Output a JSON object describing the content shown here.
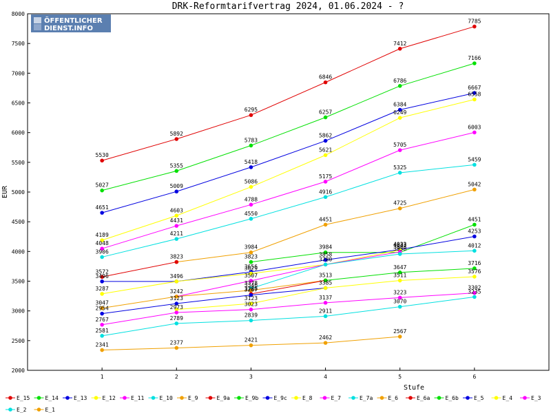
{
  "chart_data": {
    "type": "line",
    "title": "DRK-Reformtarifvertrag 2024, 01.06.2024 - ?",
    "xlabel": "Stufe",
    "ylabel": "EUR",
    "x": [
      1,
      2,
      3,
      4,
      5,
      6
    ],
    "xlim": [
      0,
      7
    ],
    "ylim": [
      2000,
      8000
    ],
    "y_ticks": [
      2000,
      2500,
      3000,
      3500,
      4000,
      4500,
      5000,
      5500,
      6000,
      6500,
      7000,
      7500,
      8000
    ],
    "grid": false,
    "legend_position": "bottom",
    "series": [
      {
        "name": "E_15",
        "color": "#e00000",
        "values": [
          5530,
          5892,
          6295,
          6846,
          7412,
          7785
        ]
      },
      {
        "name": "E_14",
        "color": "#00e000",
        "values": [
          5027,
          5355,
          5783,
          6257,
          6786,
          7166
        ]
      },
      {
        "name": "E_13",
        "color": "#0000e0",
        "values": [
          4651,
          5009,
          5418,
          5862,
          6384,
          6667
        ]
      },
      {
        "name": "E_12",
        "color": "#ffff00",
        "values": [
          4189,
          4603,
          5086,
          5621,
          6249,
          6558
        ]
      },
      {
        "name": "E_11",
        "color": "#ff00ff",
        "values": [
          4048,
          4431,
          4788,
          5175,
          5705,
          6003
        ]
      },
      {
        "name": "E_10",
        "color": "#00e0e0",
        "values": [
          3906,
          4211,
          4550,
          4916,
          5325,
          5459
        ]
      },
      {
        "name": "E_9",
        "color": "#f0a000",
        "values": [
          null,
          3823,
          3984,
          4451,
          4725,
          5042
        ]
      },
      {
        "name": "E_9a",
        "color": "#e00000",
        "values": [
          3572,
          3823,
          null,
          null,
          null,
          null
        ]
      },
      {
        "name": "E_9b",
        "color": "#00e000",
        "values": [
          null,
          null,
          3823,
          3984,
          3984,
          4451
        ]
      },
      {
        "name": "E_9c",
        "color": "#0000e0",
        "values": [
          3496,
          3496,
          3656,
          3858,
          4033,
          4253
        ]
      },
      {
        "name": "E_8",
        "color": "#ffff00",
        "values": [
          3287,
          3496,
          3629,
          3780,
          4023,
          null
        ]
      },
      {
        "name": "E_7",
        "color": "#ff00ff",
        "values": [
          null,
          3242,
          3507,
          3780,
          3993,
          null
        ]
      },
      {
        "name": "E_7a",
        "color": "#00e0e0",
        "values": [
          null,
          null,
          3378,
          3780,
          3958,
          4012
        ]
      },
      {
        "name": "E_6",
        "color": "#f0a000",
        "values": [
          3047,
          3242,
          3346,
          3513,
          null,
          null
        ]
      },
      {
        "name": "E_6a",
        "color": "#e00000",
        "values": [
          null,
          null,
          3286,
          3513,
          null,
          null
        ]
      },
      {
        "name": "E_6b",
        "color": "#00e000",
        "values": [
          null,
          null,
          null,
          3513,
          3647,
          3716
        ]
      },
      {
        "name": "E_5",
        "color": "#0000e0",
        "values": [
          2954,
          3123,
          3267,
          3385,
          null,
          null
        ]
      },
      {
        "name": "E_4",
        "color": "#ffff00",
        "values": [
          null,
          3023,
          3123,
          3385,
          3511,
          3576
        ]
      },
      {
        "name": "E_3",
        "color": "#ff00ff",
        "values": [
          2767,
          2973,
          3023,
          3137,
          3223,
          3302
        ]
      },
      {
        "name": "E_2",
        "color": "#00e0e0",
        "values": [
          2581,
          2789,
          2839,
          2911,
          3070,
          3235
        ]
      },
      {
        "name": "E_1",
        "color": "#f0a000",
        "values": [
          2341,
          2377,
          2421,
          2462,
          2567,
          null
        ]
      }
    ],
    "data_labels": [
      {
        "x": 1,
        "y": 5530,
        "text": "5530"
      },
      {
        "x": 2,
        "y": 5892,
        "text": "5892"
      },
      {
        "x": 3,
        "y": 6295,
        "text": "6295"
      },
      {
        "x": 4,
        "y": 6846,
        "text": "6846"
      },
      {
        "x": 5,
        "y": 7412,
        "text": "7412"
      },
      {
        "x": 6,
        "y": 7785,
        "text": "7785"
      },
      {
        "x": 1,
        "y": 5027,
        "text": "5027"
      },
      {
        "x": 2,
        "y": 5355,
        "text": "5355"
      },
      {
        "x": 3,
        "y": 5783,
        "text": "5783"
      },
      {
        "x": 4,
        "y": 6257,
        "text": "6257"
      },
      {
        "x": 5,
        "y": 6786,
        "text": "6786"
      },
      {
        "x": 6,
        "y": 7166,
        "text": "7166"
      },
      {
        "x": 1,
        "y": 4651,
        "text": "4651"
      },
      {
        "x": 2,
        "y": 5009,
        "text": "5009"
      },
      {
        "x": 3,
        "y": 5418,
        "text": "5418"
      },
      {
        "x": 4,
        "y": 5862,
        "text": "5862"
      },
      {
        "x": 5,
        "y": 6384,
        "text": "6384"
      },
      {
        "x": 6,
        "y": 6667,
        "text": "6667"
      },
      {
        "x": 1,
        "y": 4189,
        "text": "4189"
      },
      {
        "x": 2,
        "y": 4603,
        "text": "4603"
      },
      {
        "x": 3,
        "y": 5086,
        "text": "5086"
      },
      {
        "x": 4,
        "y": 5621,
        "text": "5621"
      },
      {
        "x": 5,
        "y": 6249,
        "text": "6249"
      },
      {
        "x": 6,
        "y": 6558,
        "text": "6558"
      },
      {
        "x": 1,
        "y": 4048,
        "text": "4048"
      },
      {
        "x": 2,
        "y": 4431,
        "text": "4431"
      },
      {
        "x": 3,
        "y": 4788,
        "text": "4788"
      },
      {
        "x": 4,
        "y": 5175,
        "text": "5175"
      },
      {
        "x": 5,
        "y": 5705,
        "text": "5705"
      },
      {
        "x": 6,
        "y": 6003,
        "text": "6003"
      },
      {
        "x": 1,
        "y": 3906,
        "text": "3906"
      },
      {
        "x": 2,
        "y": 4211,
        "text": "4211"
      },
      {
        "x": 3,
        "y": 4550,
        "text": "4550"
      },
      {
        "x": 4,
        "y": 4916,
        "text": "4916"
      },
      {
        "x": 5,
        "y": 5325,
        "text": "5325"
      },
      {
        "x": 6,
        "y": 5459,
        "text": "5459"
      },
      {
        "x": 3,
        "y": 3984,
        "text": "3984"
      },
      {
        "x": 4,
        "y": 4451,
        "text": "4451"
      },
      {
        "x": 5,
        "y": 4725,
        "text": "4725"
      },
      {
        "x": 6,
        "y": 5042,
        "text": "5042"
      },
      {
        "x": 1,
        "y": 3572,
        "text": "3572"
      },
      {
        "x": 2,
        "y": 3823,
        "text": "3823"
      },
      {
        "x": 3,
        "y": 3823,
        "text": "3823"
      },
      {
        "x": 4,
        "y": 3984,
        "text": "3984"
      },
      {
        "x": 6,
        "y": 4451,
        "text": "4451"
      },
      {
        "x": 1,
        "y": 3496,
        "text": "3496"
      },
      {
        "x": 2,
        "y": 3496,
        "text": "3496"
      },
      {
        "x": 3,
        "y": 3656,
        "text": "3656"
      },
      {
        "x": 4,
        "y": 3858,
        "text": "3858"
      },
      {
        "x": 5,
        "y": 4033,
        "text": "4033"
      },
      {
        "x": 6,
        "y": 4253,
        "text": "4253"
      },
      {
        "x": 1,
        "y": 3287,
        "text": "3287"
      },
      {
        "x": 3,
        "y": 3629,
        "text": "3629"
      },
      {
        "x": 4,
        "y": 3780,
        "text": "3780"
      },
      {
        "x": 5,
        "y": 4023,
        "text": "4023"
      },
      {
        "x": 2,
        "y": 3242,
        "text": "3242"
      },
      {
        "x": 3,
        "y": 3507,
        "text": "3507"
      },
      {
        "x": 5,
        "y": 3993,
        "text": "3993"
      },
      {
        "x": 3,
        "y": 3378,
        "text": "3378"
      },
      {
        "x": 5,
        "y": 3958,
        "text": "3958"
      },
      {
        "x": 6,
        "y": 4012,
        "text": "4012"
      },
      {
        "x": 1,
        "y": 3047,
        "text": "3047"
      },
      {
        "x": 3,
        "y": 3346,
        "text": "3346"
      },
      {
        "x": 4,
        "y": 3513,
        "text": "3513"
      },
      {
        "x": 3,
        "y": 3286,
        "text": "3286"
      },
      {
        "x": 5,
        "y": 3647,
        "text": "3647"
      },
      {
        "x": 6,
        "y": 3716,
        "text": "3716"
      },
      {
        "x": 1,
        "y": 2954,
        "text": "2954"
      },
      {
        "x": 2,
        "y": 3123,
        "text": "3123"
      },
      {
        "x": 3,
        "y": 3267,
        "text": "3267"
      },
      {
        "x": 4,
        "y": 3385,
        "text": "3385"
      },
      {
        "x": 3,
        "y": 3123,
        "text": "3123"
      },
      {
        "x": 5,
        "y": 3511,
        "text": "3511"
      },
      {
        "x": 6,
        "y": 3576,
        "text": "3576"
      },
      {
        "x": 1,
        "y": 2767,
        "text": "2767"
      },
      {
        "x": 2,
        "y": 2973,
        "text": "2973"
      },
      {
        "x": 3,
        "y": 3023,
        "text": "3023"
      },
      {
        "x": 4,
        "y": 3137,
        "text": "3137"
      },
      {
        "x": 5,
        "y": 3223,
        "text": "3223"
      },
      {
        "x": 6,
        "y": 3302,
        "text": "3302"
      },
      {
        "x": 1,
        "y": 2581,
        "text": "2581"
      },
      {
        "x": 2,
        "y": 2789,
        "text": "2789"
      },
      {
        "x": 3,
        "y": 2839,
        "text": "2839"
      },
      {
        "x": 4,
        "y": 2911,
        "text": "2911"
      },
      {
        "x": 5,
        "y": 3070,
        "text": "3070"
      },
      {
        "x": 6,
        "y": 3235,
        "text": "3235"
      },
      {
        "x": 1,
        "y": 2341,
        "text": "2341"
      },
      {
        "x": 2,
        "y": 2377,
        "text": "2377"
      },
      {
        "x": 3,
        "y": 2421,
        "text": "2421"
      },
      {
        "x": 4,
        "y": 2462,
        "text": "2462"
      },
      {
        "x": 5,
        "y": 2567,
        "text": "2567"
      }
    ]
  },
  "logo": {
    "line1": "ÖFFENTLICHER",
    "line2": "DIENST.INFO",
    "color": "#5b7fb0"
  }
}
